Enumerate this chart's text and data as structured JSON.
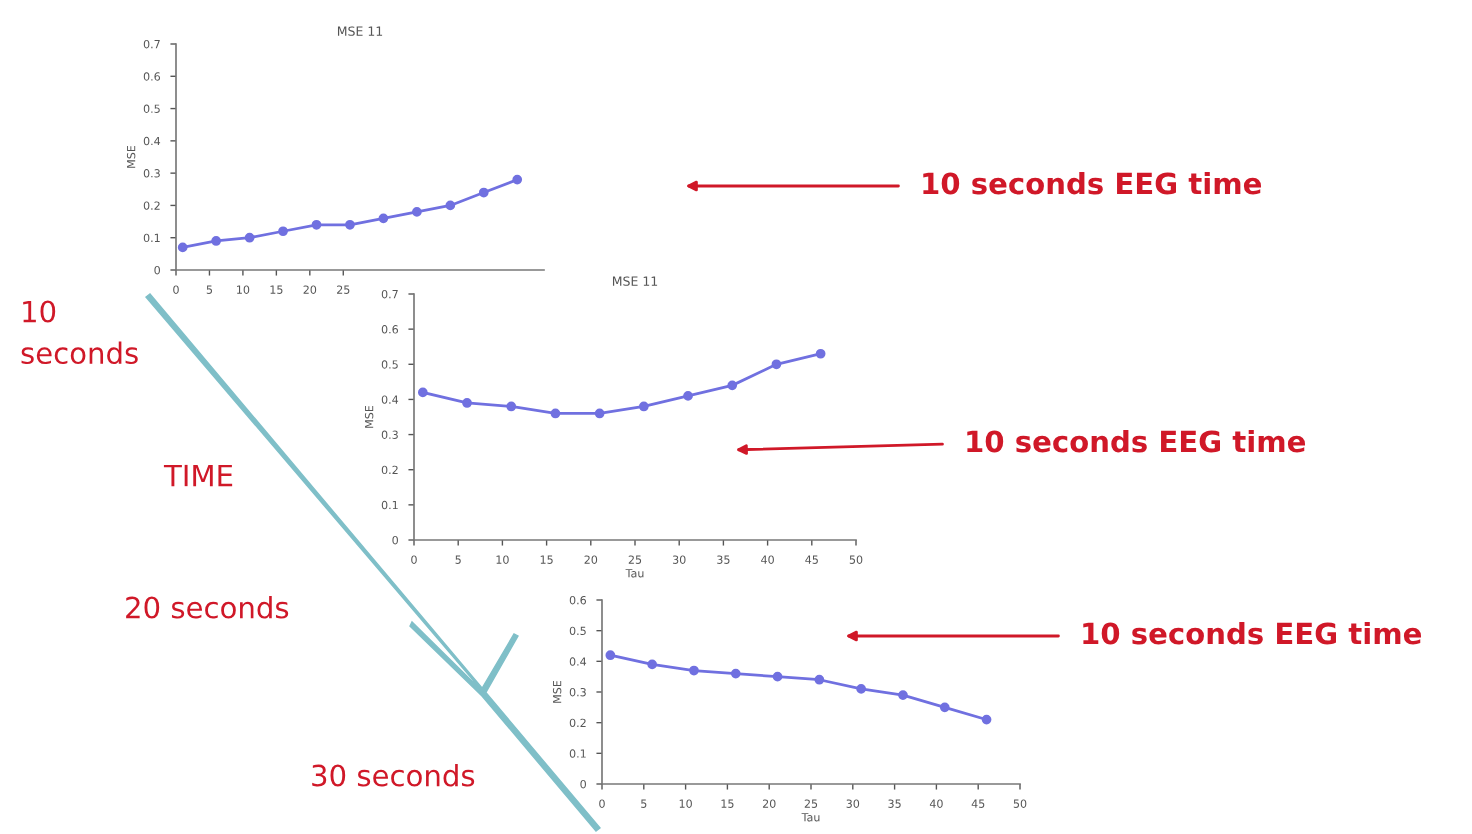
{
  "chart_data": [
    {
      "type": "line",
      "title": "MSE 11",
      "ylabel": "MSE",
      "x": [
        1,
        6,
        11,
        16,
        21,
        26,
        31,
        36,
        41,
        46,
        51
      ],
      "series": [
        {
          "color": "#7070e0",
          "values": [
            0.07,
            0.09,
            0.1,
            0.12,
            0.14,
            0.14,
            0.16,
            0.18,
            0.2,
            0.24,
            0.28
          ]
        }
      ],
      "xlim": [
        0,
        55
      ],
      "xticks": [
        0,
        5,
        10,
        15,
        20,
        25
      ],
      "ylim": [
        0,
        0.7
      ],
      "yticks": [
        0,
        0.1,
        0.2,
        0.3,
        0.4,
        0.5,
        0.6,
        0.7
      ],
      "marker": "circle",
      "grid": false,
      "annotations": [
        "10 seconds EEG time",
        "10\nseconds",
        "TIME",
        "20 seconds",
        "30 seconds"
      ]
    },
    {
      "type": "line",
      "title": "MSE 11",
      "ylabel": "MSE",
      "xlabel": "Tau",
      "x": [
        1,
        6,
        11,
        16,
        21,
        26,
        31,
        36,
        41,
        46
      ],
      "series": [
        {
          "color": "#7070e0",
          "values": [
            0.42,
            0.39,
            0.38,
            0.36,
            0.36,
            0.38,
            0.41,
            0.44,
            0.5,
            0.53
          ]
        }
      ],
      "xlim": [
        0,
        50
      ],
      "xticks": [
        0,
        5,
        10,
        15,
        20,
        25,
        30,
        35,
        40,
        45,
        50
      ],
      "ylim": [
        0,
        0.7
      ],
      "yticks": [
        0,
        0.1,
        0.2,
        0.3,
        0.4,
        0.5,
        0.6,
        0.7
      ],
      "marker": "circle",
      "grid": false,
      "annotations": [
        "10 seconds EEG time"
      ]
    },
    {
      "type": "line",
      "ylabel": "MSE",
      "xlabel": "Tau",
      "x": [
        1,
        6,
        11,
        16,
        21,
        26,
        31,
        36,
        41,
        46
      ],
      "series": [
        {
          "color": "#7070e0",
          "values": [
            0.42,
            0.39,
            0.37,
            0.36,
            0.35,
            0.34,
            0.31,
            0.29,
            0.25,
            0.21
          ]
        }
      ],
      "xlim": [
        0,
        50
      ],
      "xticks": [
        0,
        5,
        10,
        15,
        20,
        25,
        30,
        35,
        40,
        45,
        50
      ],
      "ylim": [
        0,
        0.6
      ],
      "yticks": [
        0,
        0.1,
        0.2,
        0.3,
        0.4,
        0.5,
        0.6
      ],
      "marker": "circle",
      "grid": false,
      "annotations": [
        "10 seconds EEG time"
      ]
    }
  ]
}
